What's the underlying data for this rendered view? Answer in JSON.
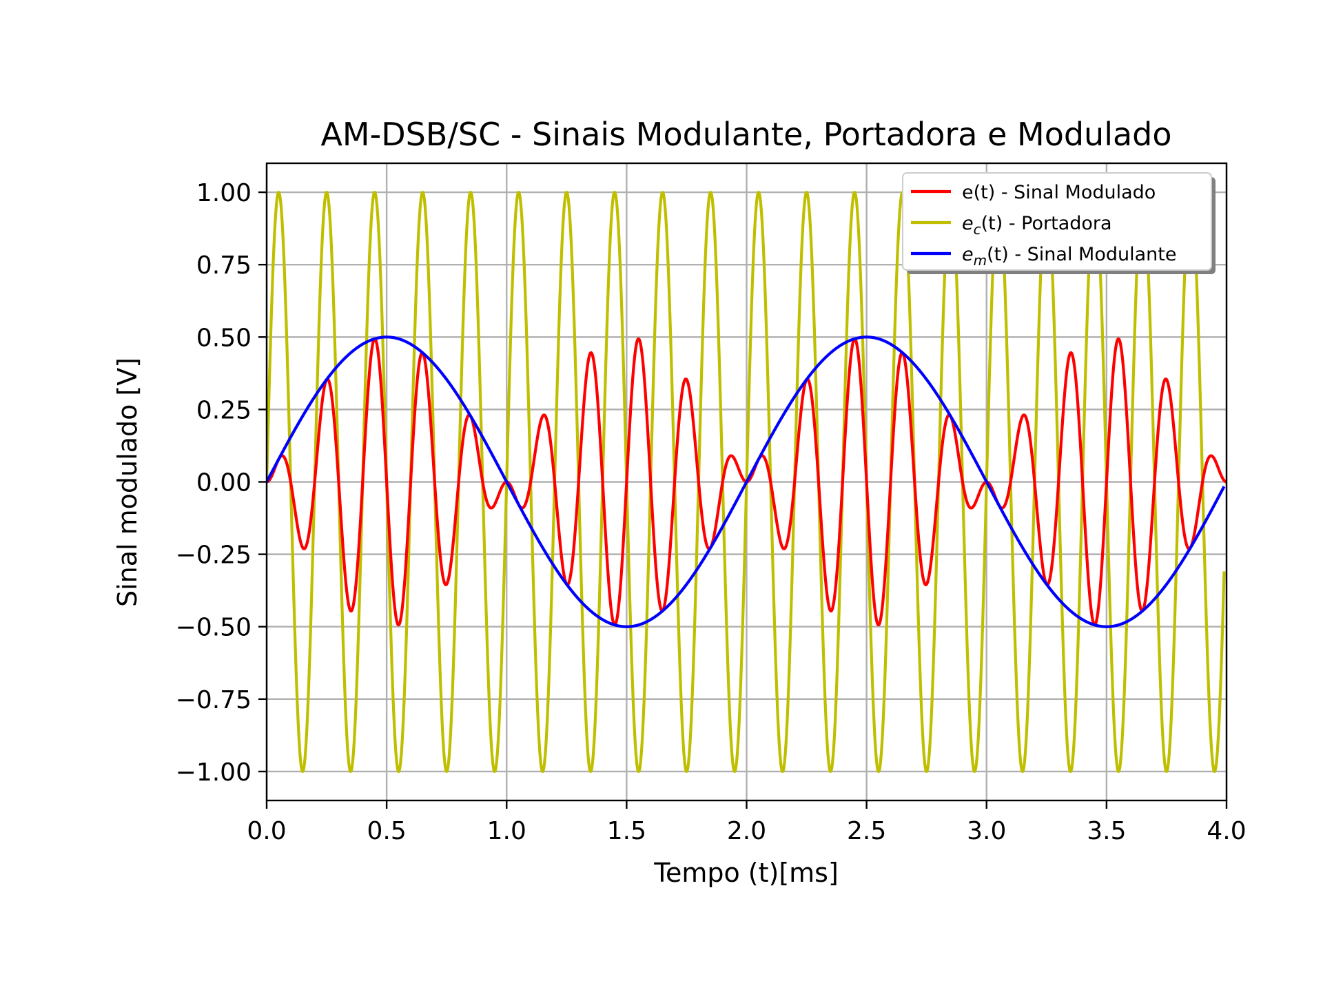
{
  "chart_data": {
    "type": "line",
    "title": "AM-DSB/SC - Sinais Modulante, Portadora e Modulado",
    "xlabel": "Tempo (t)[ms]",
    "ylabel": "Sinal modulado [V]",
    "xlim": [
      0,
      4.0
    ],
    "ylim": [
      -1.1,
      1.1
    ],
    "xticks": [
      0.0,
      0.5,
      1.0,
      1.5,
      2.0,
      2.5,
      3.0,
      3.5,
      4.0
    ],
    "xtick_labels": [
      "0.0",
      "0.5",
      "1.0",
      "1.5",
      "2.0",
      "2.5",
      "3.0",
      "3.5",
      "4.0"
    ],
    "yticks": [
      1.0,
      0.75,
      0.5,
      0.25,
      0.0,
      -0.25,
      -0.5,
      -0.75,
      -1.0
    ],
    "ytick_labels": [
      "1.00",
      "0.75",
      "0.50",
      "0.25",
      "0.00",
      "−0.25",
      "−0.50",
      "−0.75",
      "−1.00"
    ],
    "grid": true,
    "legend_position": "top-right",
    "series": [
      {
        "name": "e(t) - Sinal Modulado",
        "legend_parts": [
          {
            "text": "e(t) - Sinal Modulado",
            "italic": false
          }
        ],
        "color": "#ff0000",
        "formula": "0.5*sin(2*pi*0.5*t)*sin(2*pi*5*t)",
        "x_range": [
          0,
          4.0
        ]
      },
      {
        "name": "ec(t) - Portadora",
        "legend_parts": [
          {
            "text": "e",
            "italic": true
          },
          {
            "text": "c",
            "italic": true,
            "sub": true
          },
          {
            "text": "(t) - Portadora",
            "italic": false
          }
        ],
        "color": "#bfbf00",
        "formula": "sin(2*pi*5*t)",
        "x_range": [
          0,
          3.99
        ]
      },
      {
        "name": "em(t) - Sinal Modulante",
        "legend_parts": [
          {
            "text": "e",
            "italic": true
          },
          {
            "text": "m",
            "italic": true,
            "sub": true
          },
          {
            "text": "(t) - Sinal Modulante",
            "italic": false
          }
        ],
        "color": "#0000ff",
        "formula": "0.5*sin(2*pi*0.5*t)",
        "x_range": [
          0,
          3.99
        ]
      }
    ]
  }
}
